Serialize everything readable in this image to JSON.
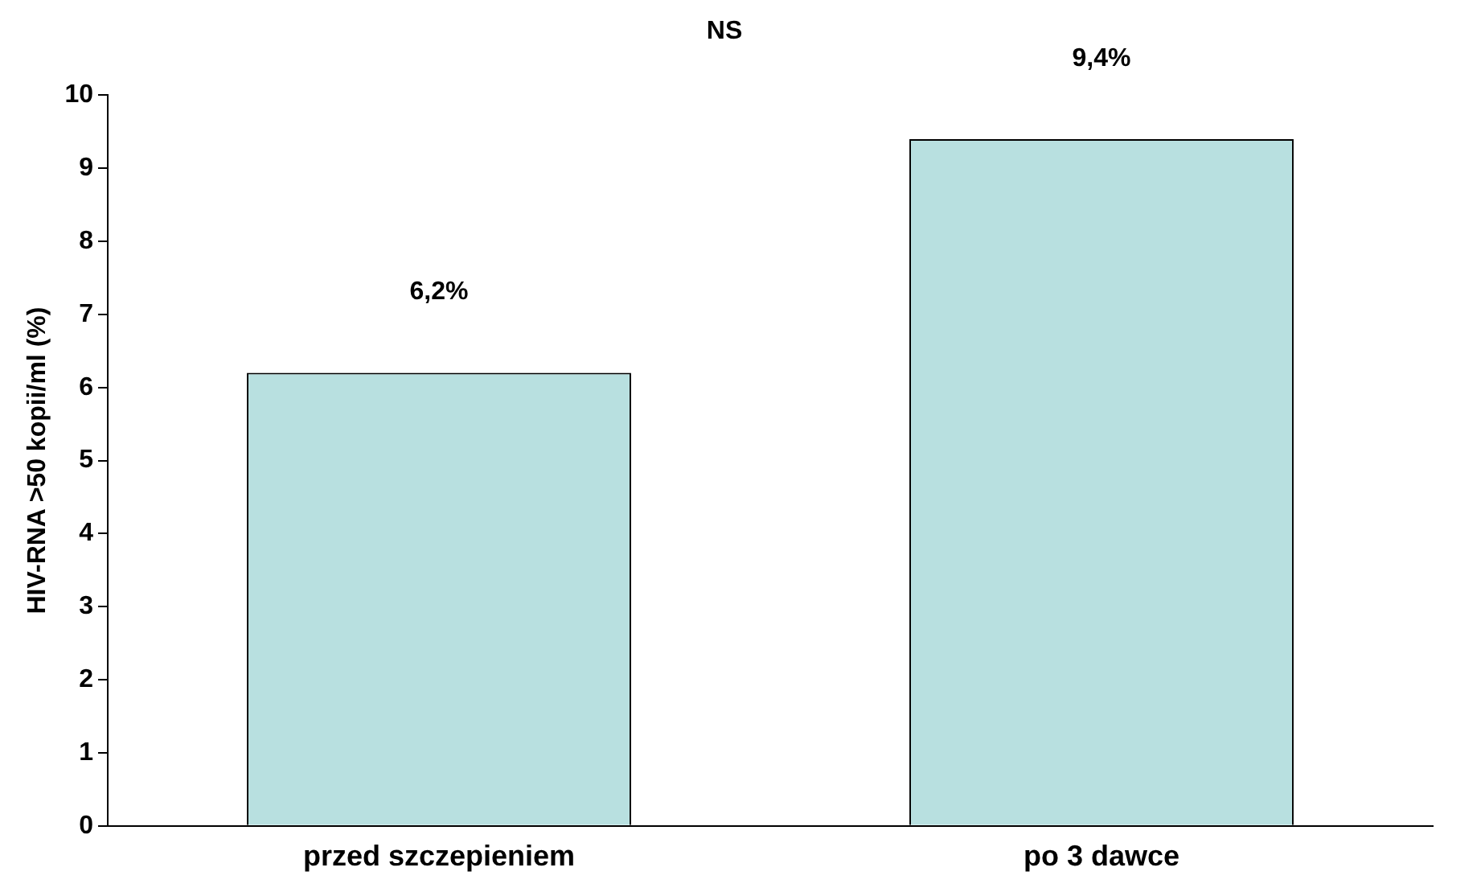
{
  "chart_data": {
    "type": "bar",
    "title": "NS",
    "ylabel": "HIV-RNA >50 kopii/ml (%)",
    "categories": [
      "przed szczepieniem",
      "po 3 dawce"
    ],
    "values": [
      6.2,
      9.4
    ],
    "value_labels": [
      "6,2%",
      "9,4%"
    ],
    "color": "#b8e0e0",
    "ylim": [
      0,
      10
    ],
    "yticks": [
      0,
      1,
      2,
      3,
      4,
      5,
      6,
      7,
      8,
      9,
      10
    ],
    "grid": false,
    "legend": false
  }
}
